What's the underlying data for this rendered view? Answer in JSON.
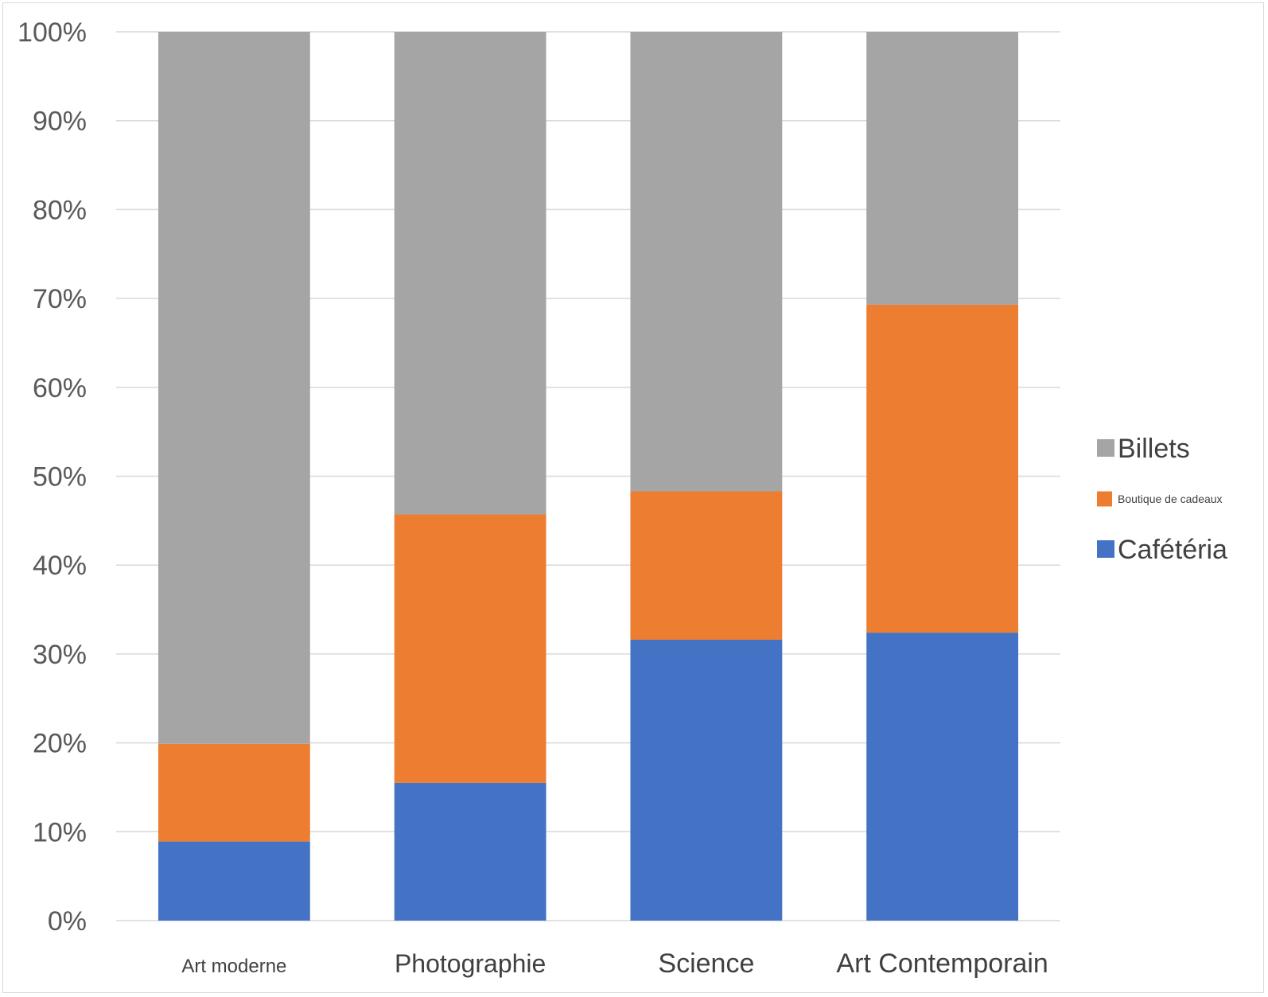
{
  "chart_data": {
    "type": "bar",
    "stacked": true,
    "percent_stacked": true,
    "title": "",
    "xlabel": "",
    "ylabel": "",
    "ylim": [
      0,
      100
    ],
    "yticks": [
      "0%",
      "10%",
      "20%",
      "30%",
      "40%",
      "50%",
      "60%",
      "70%",
      "80%",
      "90%",
      "100%"
    ],
    "grid": true,
    "legend_position": "right",
    "categories": [
      "Art moderne",
      "Photographie",
      "Science",
      "Art Contemporain"
    ],
    "series": [
      {
        "name": "Cafétéria",
        "color": "#4472C4",
        "values": [
          8.9,
          15.5,
          31.6,
          32.4
        ]
      },
      {
        "name": "Boutique de cadeaux",
        "color": "#ED7D31",
        "values": [
          11.0,
          30.2,
          16.7,
          36.9
        ]
      },
      {
        "name": "Billets",
        "color": "#A5A5A5",
        "values": [
          80.1,
          54.3,
          51.7,
          30.7
        ]
      }
    ],
    "legend": [
      {
        "name": "Billets",
        "color": "#A5A5A5"
      },
      {
        "name": "Boutique de cadeaux",
        "color": "#ED7D31"
      },
      {
        "name": "Cafétéria",
        "color": "#4472C4"
      }
    ]
  }
}
